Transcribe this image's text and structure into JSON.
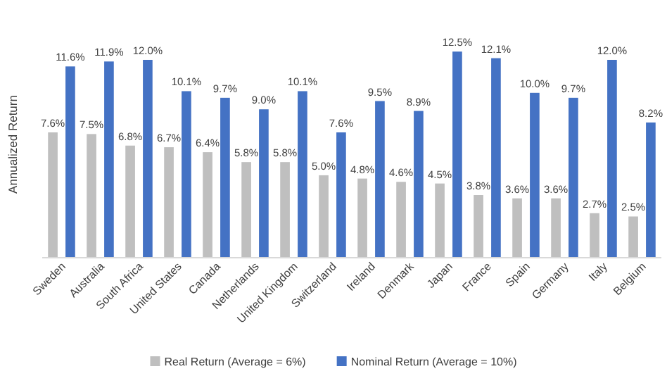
{
  "chart_data": {
    "type": "bar",
    "ylabel": "Annualized Return",
    "categories": [
      "Sweden",
      "Australia",
      "South Africa",
      "United States",
      "Canada",
      "Netherlands",
      "United Kingdom",
      "Switzerland",
      "Ireland",
      "Denmark",
      "Japan",
      "France",
      "Spain",
      "Germany",
      "Italy",
      "Belgium"
    ],
    "series": [
      {
        "name": "Real Return (Average = 6%)",
        "color": "#bfbfbf",
        "values": [
          7.6,
          7.5,
          6.8,
          6.7,
          6.4,
          5.8,
          5.8,
          5.0,
          4.8,
          4.6,
          4.5,
          3.8,
          3.6,
          3.6,
          2.7,
          2.5
        ],
        "value_labels": [
          "7.6%",
          "7.5%",
          "6.8%",
          "6.7%",
          "6.4%",
          "5.8%",
          "5.8%",
          "5.0%",
          "4.8%",
          "4.6%",
          "4.5%",
          "3.8%",
          "3.6%",
          "3.6%",
          "2.7%",
          "2.5%"
        ]
      },
      {
        "name": "Nominal Return (Average = 10%)",
        "color": "#4472c4",
        "values": [
          11.6,
          11.9,
          12.0,
          10.1,
          9.7,
          9.0,
          10.1,
          7.6,
          9.5,
          8.9,
          12.5,
          12.1,
          10.0,
          9.7,
          12.0,
          8.2
        ],
        "value_labels": [
          "11.6%",
          "11.9%",
          "12.0%",
          "10.1%",
          "9.7%",
          "9.0%",
          "10.1%",
          "7.6%",
          "9.5%",
          "8.9%",
          "12.5%",
          "12.1%",
          "10.0%",
          "9.7%",
          "12.0%",
          "8.2%"
        ]
      }
    ],
    "legend": "bottom"
  }
}
